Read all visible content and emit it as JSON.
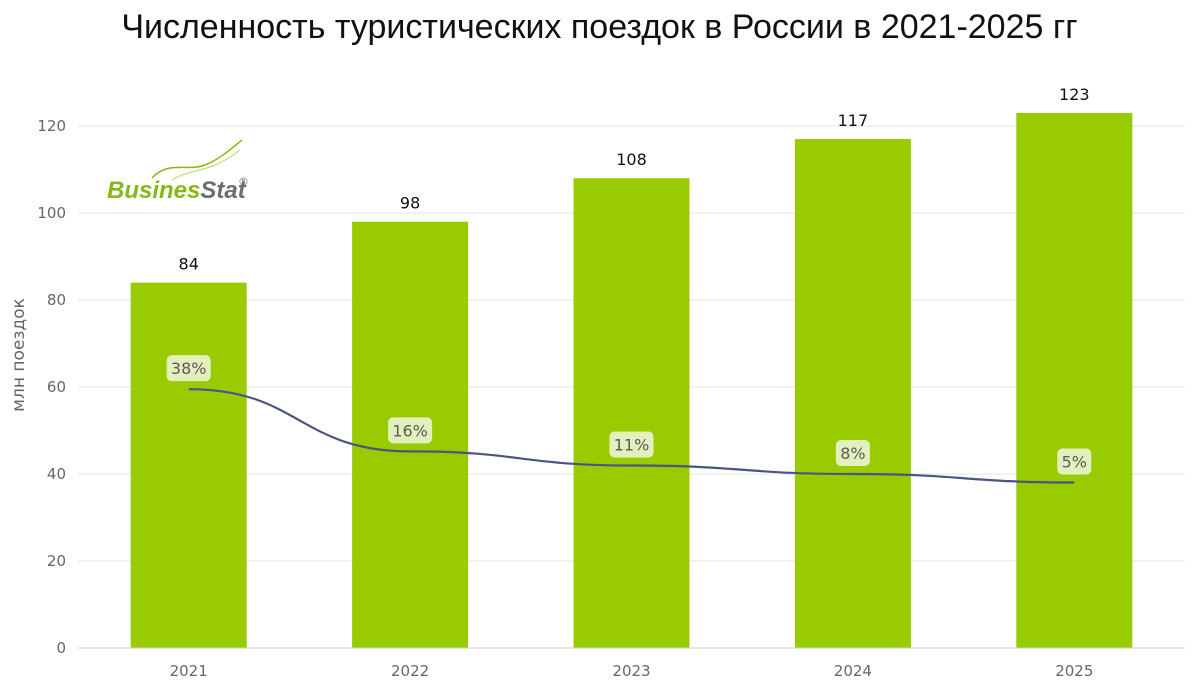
{
  "chart_data": {
    "type": "bar",
    "title": "Численность туристических поездок в России в 2021-2025 гг",
    "ylabel": "млн поездок",
    "xlabel": "",
    "ylim": [
      0,
      120
    ],
    "yticks": [
      0,
      20,
      40,
      60,
      80,
      100,
      120
    ],
    "grid": true,
    "categories": [
      "2021",
      "2022",
      "2023",
      "2024",
      "2025"
    ],
    "series": [
      {
        "type": "bar",
        "values": [
          84,
          98,
          108,
          117,
          123
        ],
        "data_labels": [
          "84",
          "98",
          "108",
          "117",
          "123"
        ]
      },
      {
        "type": "line",
        "values": [
          38,
          16,
          11,
          8,
          5
        ],
        "data_labels": [
          "38%",
          "16%",
          "11%",
          "8%",
          "5%"
        ]
      }
    ],
    "logo": {
      "part1": "Busines",
      "part2": "Stat",
      "mark": "®"
    }
  },
  "colors": {
    "bar": "#99cc00",
    "line": "#4a5586",
    "label_box": "#e3f0bd",
    "grid": "#e6e6e6",
    "logo_green": "#86b817",
    "logo_gray": "#6d6d6d"
  }
}
